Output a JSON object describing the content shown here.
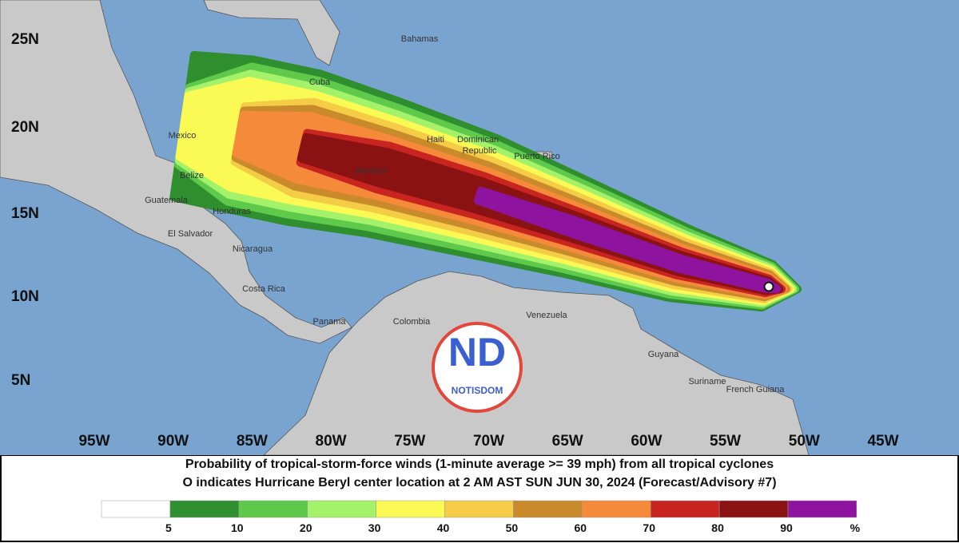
{
  "map": {
    "lat_labels": [
      "25N",
      "20N",
      "15N",
      "10N",
      "5N"
    ],
    "lon_labels": [
      "95W",
      "90W",
      "85W",
      "80W",
      "75W",
      "70W",
      "65W",
      "60W",
      "55W",
      "50W",
      "45W"
    ],
    "places": [
      "Bahamas",
      "Cuba",
      "Mexico",
      "Haiti",
      "Dominican",
      "Republic",
      "Puerto Rico",
      "Jamaica",
      "Belize",
      "Guatemala",
      "Honduras",
      "El Salvador",
      "Nicaragua",
      "Costa Rica",
      "Panama",
      "Colombia",
      "Venezuela",
      "Guyana",
      "Suriname",
      "French Guiana"
    ]
  },
  "logo": {
    "text": "ND",
    "subtext": "NOTISDOM"
  },
  "caption": {
    "line1": "Probability of tropical-storm-force winds (1-minute average >= 39 mph) from all tropical cyclones",
    "line2": "O indicates Hurricane Beryl center location at 2 AM AST SUN JUN 30, 2024 (Forecast/Advisory #7)"
  },
  "legend": {
    "colors": [
      "#ffffff",
      "#2f8f2f",
      "#5ec94b",
      "#a3f26a",
      "#fbfa55",
      "#f4cc45",
      "#c98a2c",
      "#f58a3a",
      "#c82420",
      "#8a1212",
      "#8e14a0"
    ],
    "labels": [
      "5",
      "10",
      "20",
      "30",
      "40",
      "50",
      "60",
      "70",
      "80",
      "90",
      "%"
    ]
  }
}
